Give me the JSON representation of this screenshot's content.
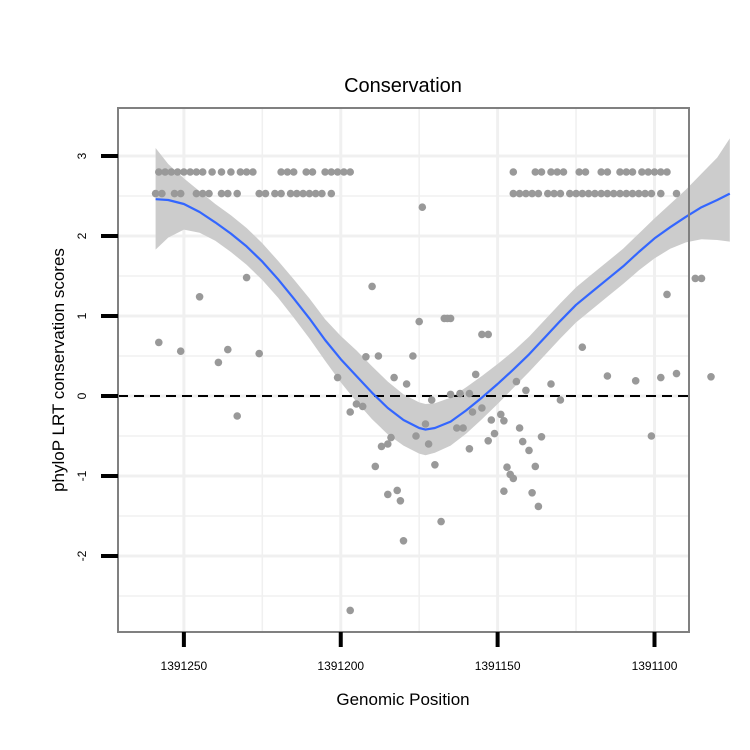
{
  "chart_data": {
    "type": "scatter",
    "title": "Conservation",
    "xlabel": "Genomic Position",
    "ylabel": "phyloP LRT conservation scores",
    "x_reversed": true,
    "xlim": [
      1391271,
      1391089
    ],
    "ylim": [
      -2.95,
      3.6
    ],
    "x_ticks": [
      1391250,
      1391200,
      1391150,
      1391100
    ],
    "x_tick_labels": [
      "1391250",
      "1391200",
      "1391150",
      "1391100"
    ],
    "x_minor_ticks": [
      1391225,
      1391175,
      1391125
    ],
    "y_ticks": [
      3,
      2,
      1,
      0,
      -1,
      -2
    ],
    "y_tick_labels": [
      "3",
      "2",
      "1",
      "0",
      "-1",
      "-2"
    ],
    "y_minor_ticks": [
      2.5,
      1.5,
      0.5,
      -0.5,
      -1.5,
      -2.5
    ],
    "grid": true,
    "reference_line": {
      "y": 0,
      "style": "dashed",
      "color": "#000000"
    },
    "colors": {
      "points": "#999999",
      "smooth_line": "#3366ff",
      "confidence_band": "#cccccc",
      "panel_border": "#808080",
      "grid": "#f0f0f0"
    },
    "points": [
      {
        "x": 1391258,
        "y": 2.8
      },
      {
        "x": 1391256,
        "y": 2.8
      },
      {
        "x": 1391254,
        "y": 2.8
      },
      {
        "x": 1391252,
        "y": 2.8
      },
      {
        "x": 1391250,
        "y": 2.8
      },
      {
        "x": 1391248,
        "y": 2.8
      },
      {
        "x": 1391246,
        "y": 2.8
      },
      {
        "x": 1391244,
        "y": 2.8
      },
      {
        "x": 1391241,
        "y": 2.8
      },
      {
        "x": 1391238,
        "y": 2.8
      },
      {
        "x": 1391235,
        "y": 2.8
      },
      {
        "x": 1391232,
        "y": 2.8
      },
      {
        "x": 1391230,
        "y": 2.8
      },
      {
        "x": 1391228,
        "y": 2.8
      },
      {
        "x": 1391219,
        "y": 2.8
      },
      {
        "x": 1391217,
        "y": 2.8
      },
      {
        "x": 1391215,
        "y": 2.8
      },
      {
        "x": 1391211,
        "y": 2.8
      },
      {
        "x": 1391209,
        "y": 2.8
      },
      {
        "x": 1391205,
        "y": 2.8
      },
      {
        "x": 1391203,
        "y": 2.8
      },
      {
        "x": 1391201,
        "y": 2.8
      },
      {
        "x": 1391199,
        "y": 2.8
      },
      {
        "x": 1391197,
        "y": 2.8
      },
      {
        "x": 1391259,
        "y": 2.53
      },
      {
        "x": 1391257,
        "y": 2.53
      },
      {
        "x": 1391253,
        "y": 2.53
      },
      {
        "x": 1391251,
        "y": 2.53
      },
      {
        "x": 1391246,
        "y": 2.53
      },
      {
        "x": 1391244,
        "y": 2.53
      },
      {
        "x": 1391242,
        "y": 2.53
      },
      {
        "x": 1391238,
        "y": 2.53
      },
      {
        "x": 1391236,
        "y": 2.53
      },
      {
        "x": 1391233,
        "y": 2.53
      },
      {
        "x": 1391226,
        "y": 2.53
      },
      {
        "x": 1391224,
        "y": 2.53
      },
      {
        "x": 1391221,
        "y": 2.53
      },
      {
        "x": 1391219,
        "y": 2.53
      },
      {
        "x": 1391216,
        "y": 2.53
      },
      {
        "x": 1391214,
        "y": 2.53
      },
      {
        "x": 1391212,
        "y": 2.53
      },
      {
        "x": 1391210,
        "y": 2.53
      },
      {
        "x": 1391208,
        "y": 2.53
      },
      {
        "x": 1391206,
        "y": 2.53
      },
      {
        "x": 1391203,
        "y": 2.53
      },
      {
        "x": 1391145,
        "y": 2.8
      },
      {
        "x": 1391138,
        "y": 2.8
      },
      {
        "x": 1391136,
        "y": 2.8
      },
      {
        "x": 1391133,
        "y": 2.8
      },
      {
        "x": 1391131,
        "y": 2.8
      },
      {
        "x": 1391129,
        "y": 2.8
      },
      {
        "x": 1391124,
        "y": 2.8
      },
      {
        "x": 1391122,
        "y": 2.8
      },
      {
        "x": 1391117,
        "y": 2.8
      },
      {
        "x": 1391115,
        "y": 2.8
      },
      {
        "x": 1391111,
        "y": 2.8
      },
      {
        "x": 1391109,
        "y": 2.8
      },
      {
        "x": 1391107,
        "y": 2.8
      },
      {
        "x": 1391104,
        "y": 2.8
      },
      {
        "x": 1391102,
        "y": 2.8
      },
      {
        "x": 1391100,
        "y": 2.8
      },
      {
        "x": 1391098,
        "y": 2.8
      },
      {
        "x": 1391096,
        "y": 2.8
      },
      {
        "x": 1391145,
        "y": 2.53
      },
      {
        "x": 1391143,
        "y": 2.53
      },
      {
        "x": 1391141,
        "y": 2.53
      },
      {
        "x": 1391139,
        "y": 2.53
      },
      {
        "x": 1391137,
        "y": 2.53
      },
      {
        "x": 1391134,
        "y": 2.53
      },
      {
        "x": 1391132,
        "y": 2.53
      },
      {
        "x": 1391130,
        "y": 2.53
      },
      {
        "x": 1391127,
        "y": 2.53
      },
      {
        "x": 1391125,
        "y": 2.53
      },
      {
        "x": 1391123,
        "y": 2.53
      },
      {
        "x": 1391121,
        "y": 2.53
      },
      {
        "x": 1391119,
        "y": 2.53
      },
      {
        "x": 1391117,
        "y": 2.53
      },
      {
        "x": 1391115,
        "y": 2.53
      },
      {
        "x": 1391113,
        "y": 2.53
      },
      {
        "x": 1391111,
        "y": 2.53
      },
      {
        "x": 1391109,
        "y": 2.53
      },
      {
        "x": 1391107,
        "y": 2.53
      },
      {
        "x": 1391105,
        "y": 2.53
      },
      {
        "x": 1391103,
        "y": 2.53
      },
      {
        "x": 1391101,
        "y": 2.53
      },
      {
        "x": 1391098,
        "y": 2.53
      },
      {
        "x": 1391093,
        "y": 2.53
      },
      {
        "x": 1391258,
        "y": 0.67
      },
      {
        "x": 1391251,
        "y": 0.56
      },
      {
        "x": 1391245,
        "y": 1.24
      },
      {
        "x": 1391239,
        "y": 0.42
      },
      {
        "x": 1391236,
        "y": 0.58
      },
      {
        "x": 1391233,
        "y": -0.25
      },
      {
        "x": 1391230,
        "y": 1.48
      },
      {
        "x": 1391226,
        "y": 0.53
      },
      {
        "x": 1391201,
        "y": 0.23
      },
      {
        "x": 1391197,
        "y": -0.2
      },
      {
        "x": 1391197,
        "y": -2.68
      },
      {
        "x": 1391195,
        "y": -0.1
      },
      {
        "x": 1391193,
        "y": -0.13
      },
      {
        "x": 1391192,
        "y": 0.49
      },
      {
        "x": 1391190,
        "y": 1.37
      },
      {
        "x": 1391189,
        "y": -0.88
      },
      {
        "x": 1391188,
        "y": 0.5
      },
      {
        "x": 1391187,
        "y": -0.63
      },
      {
        "x": 1391185,
        "y": -1.23
      },
      {
        "x": 1391185,
        "y": -0.6
      },
      {
        "x": 1391184,
        "y": -0.52
      },
      {
        "x": 1391183,
        "y": 0.23
      },
      {
        "x": 1391182,
        "y": -1.18
      },
      {
        "x": 1391181,
        "y": -1.31
      },
      {
        "x": 1391180,
        "y": -1.81
      },
      {
        "x": 1391179,
        "y": 0.15
      },
      {
        "x": 1391177,
        "y": 0.5
      },
      {
        "x": 1391176,
        "y": -0.5
      },
      {
        "x": 1391175,
        "y": 0.93
      },
      {
        "x": 1391174,
        "y": 2.36
      },
      {
        "x": 1391173,
        "y": -0.35
      },
      {
        "x": 1391172,
        "y": -0.6
      },
      {
        "x": 1391171,
        "y": -0.05
      },
      {
        "x": 1391170,
        "y": -0.86
      },
      {
        "x": 1391168,
        "y": -1.57
      },
      {
        "x": 1391167,
        "y": 0.97
      },
      {
        "x": 1391166,
        "y": 0.97
      },
      {
        "x": 1391165,
        "y": 0.97
      },
      {
        "x": 1391165,
        "y": 0.02
      },
      {
        "x": 1391163,
        "y": -0.4
      },
      {
        "x": 1391162,
        "y": 0.03
      },
      {
        "x": 1391161,
        "y": -0.4
      },
      {
        "x": 1391159,
        "y": 0.03
      },
      {
        "x": 1391159,
        "y": -0.66
      },
      {
        "x": 1391158,
        "y": -0.2
      },
      {
        "x": 1391157,
        "y": 0.27
      },
      {
        "x": 1391155,
        "y": -0.15
      },
      {
        "x": 1391155,
        "y": 0.77
      },
      {
        "x": 1391153,
        "y": 0.77
      },
      {
        "x": 1391153,
        "y": -0.56
      },
      {
        "x": 1391152,
        "y": -0.3
      },
      {
        "x": 1391151,
        "y": -0.47
      },
      {
        "x": 1391149,
        "y": -0.23
      },
      {
        "x": 1391148,
        "y": -0.31
      },
      {
        "x": 1391148,
        "y": -1.19
      },
      {
        "x": 1391147,
        "y": -0.89
      },
      {
        "x": 1391146,
        "y": -0.98
      },
      {
        "x": 1391145,
        "y": -1.03
      },
      {
        "x": 1391144,
        "y": 0.18
      },
      {
        "x": 1391143,
        "y": -0.4
      },
      {
        "x": 1391142,
        "y": -0.57
      },
      {
        "x": 1391141,
        "y": 0.07
      },
      {
        "x": 1391140,
        "y": -0.68
      },
      {
        "x": 1391139,
        "y": -1.21
      },
      {
        "x": 1391138,
        "y": -0.88
      },
      {
        "x": 1391137,
        "y": -1.38
      },
      {
        "x": 1391136,
        "y": -0.51
      },
      {
        "x": 1391133,
        "y": 0.15
      },
      {
        "x": 1391130,
        "y": -0.05
      },
      {
        "x": 1391123,
        "y": 0.61
      },
      {
        "x": 1391115,
        "y": 0.25
      },
      {
        "x": 1391106,
        "y": 0.19
      },
      {
        "x": 1391101,
        "y": -0.5
      },
      {
        "x": 1391098,
        "y": 0.23
      },
      {
        "x": 1391096,
        "y": 1.27
      },
      {
        "x": 1391093,
        "y": 0.28
      },
      {
        "x": 1391087,
        "y": 1.47
      },
      {
        "x": 1391085,
        "y": 1.47
      },
      {
        "x": 1391082,
        "y": 0.24
      }
    ],
    "smooth_line": [
      {
        "x": 1391259,
        "y": 2.46
      },
      {
        "x": 1391255,
        "y": 2.45
      },
      {
        "x": 1391250,
        "y": 2.4
      },
      {
        "x": 1391245,
        "y": 2.3
      },
      {
        "x": 1391240,
        "y": 2.17
      },
      {
        "x": 1391235,
        "y": 2.03
      },
      {
        "x": 1391230,
        "y": 1.87
      },
      {
        "x": 1391225,
        "y": 1.68
      },
      {
        "x": 1391220,
        "y": 1.46
      },
      {
        "x": 1391215,
        "y": 1.22
      },
      {
        "x": 1391210,
        "y": 0.97
      },
      {
        "x": 1391205,
        "y": 0.7
      },
      {
        "x": 1391200,
        "y": 0.46
      },
      {
        "x": 1391195,
        "y": 0.25
      },
      {
        "x": 1391190,
        "y": 0.04
      },
      {
        "x": 1391185,
        "y": -0.15
      },
      {
        "x": 1391180,
        "y": -0.3
      },
      {
        "x": 1391175,
        "y": -0.4
      },
      {
        "x": 1391173,
        "y": -0.42
      },
      {
        "x": 1391170,
        "y": -0.4
      },
      {
        "x": 1391165,
        "y": -0.32
      },
      {
        "x": 1391160,
        "y": -0.18
      },
      {
        "x": 1391155,
        "y": -0.02
      },
      {
        "x": 1391150,
        "y": 0.15
      },
      {
        "x": 1391145,
        "y": 0.33
      },
      {
        "x": 1391140,
        "y": 0.52
      },
      {
        "x": 1391135,
        "y": 0.73
      },
      {
        "x": 1391130,
        "y": 0.94
      },
      {
        "x": 1391125,
        "y": 1.14
      },
      {
        "x": 1391120,
        "y": 1.3
      },
      {
        "x": 1391115,
        "y": 1.46
      },
      {
        "x": 1391110,
        "y": 1.62
      },
      {
        "x": 1391105,
        "y": 1.8
      },
      {
        "x": 1391100,
        "y": 1.97
      },
      {
        "x": 1391095,
        "y": 2.11
      },
      {
        "x": 1391090,
        "y": 2.24
      },
      {
        "x": 1391085,
        "y": 2.36
      },
      {
        "x": 1391080,
        "y": 2.45
      },
      {
        "x": 1391076,
        "y": 2.53
      }
    ],
    "confidence_band": [
      {
        "x": 1391259,
        "lower": 1.83,
        "upper": 3.1
      },
      {
        "x": 1391255,
        "lower": 1.98,
        "upper": 2.9
      },
      {
        "x": 1391250,
        "lower": 2.08,
        "upper": 2.72
      },
      {
        "x": 1391245,
        "lower": 2.04,
        "upper": 2.56
      },
      {
        "x": 1391240,
        "lower": 1.94,
        "upper": 2.4
      },
      {
        "x": 1391235,
        "lower": 1.8,
        "upper": 2.26
      },
      {
        "x": 1391230,
        "lower": 1.64,
        "upper": 2.1
      },
      {
        "x": 1391225,
        "lower": 1.45,
        "upper": 1.91
      },
      {
        "x": 1391220,
        "lower": 1.23,
        "upper": 1.69
      },
      {
        "x": 1391215,
        "lower": 0.98,
        "upper": 1.46
      },
      {
        "x": 1391210,
        "lower": 0.72,
        "upper": 1.22
      },
      {
        "x": 1391205,
        "lower": 0.44,
        "upper": 0.96
      },
      {
        "x": 1391200,
        "lower": 0.17,
        "upper": 0.75
      },
      {
        "x": 1391195,
        "lower": -0.07,
        "upper": 0.57
      },
      {
        "x": 1391190,
        "lower": -0.29,
        "upper": 0.37
      },
      {
        "x": 1391185,
        "lower": -0.48,
        "upper": 0.18
      },
      {
        "x": 1391180,
        "lower": -0.62,
        "upper": 0.02
      },
      {
        "x": 1391175,
        "lower": -0.72,
        "upper": -0.08
      },
      {
        "x": 1391173,
        "lower": -0.74,
        "upper": -0.1
      },
      {
        "x": 1391170,
        "lower": -0.71,
        "upper": -0.09
      },
      {
        "x": 1391165,
        "lower": -0.62,
        "upper": -0.02
      },
      {
        "x": 1391160,
        "lower": -0.47,
        "upper": 0.11
      },
      {
        "x": 1391155,
        "lower": -0.29,
        "upper": 0.25
      },
      {
        "x": 1391150,
        "lower": -0.1,
        "upper": 0.4
      },
      {
        "x": 1391145,
        "lower": 0.1,
        "upper": 0.56
      },
      {
        "x": 1391140,
        "lower": 0.3,
        "upper": 0.74
      },
      {
        "x": 1391135,
        "lower": 0.51,
        "upper": 0.95
      },
      {
        "x": 1391130,
        "lower": 0.72,
        "upper": 1.16
      },
      {
        "x": 1391125,
        "lower": 0.92,
        "upper": 1.36
      },
      {
        "x": 1391120,
        "lower": 1.08,
        "upper": 1.52
      },
      {
        "x": 1391115,
        "lower": 1.24,
        "upper": 1.68
      },
      {
        "x": 1391110,
        "lower": 1.4,
        "upper": 1.84
      },
      {
        "x": 1391105,
        "lower": 1.57,
        "upper": 2.03
      },
      {
        "x": 1391100,
        "lower": 1.72,
        "upper": 2.22
      },
      {
        "x": 1391095,
        "lower": 1.84,
        "upper": 2.4
      },
      {
        "x": 1391090,
        "lower": 1.92,
        "upper": 2.58
      },
      {
        "x": 1391085,
        "lower": 1.96,
        "upper": 2.78
      },
      {
        "x": 1391080,
        "lower": 1.95,
        "upper": 2.98
      },
      {
        "x": 1391076,
        "lower": 1.93,
        "upper": 3.22
      }
    ]
  }
}
